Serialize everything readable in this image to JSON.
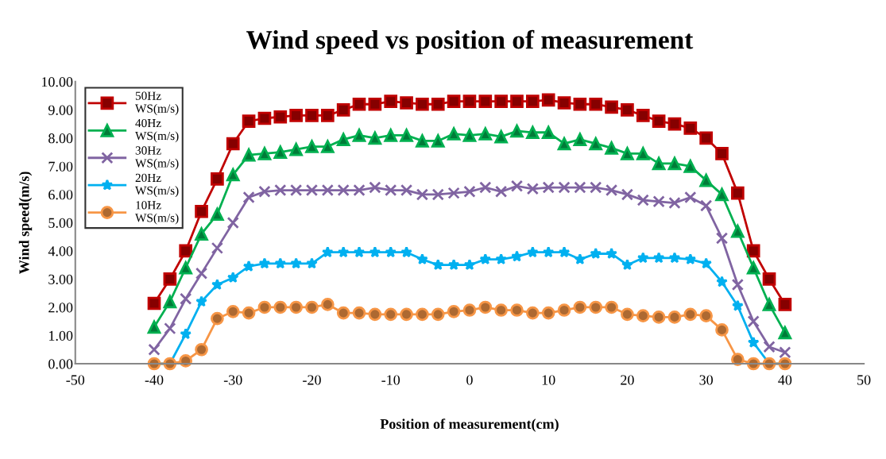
{
  "chart_data": {
    "type": "line",
    "title": "Wind speed vs position of measurement",
    "xlabel": "Position of measurement(cm)",
    "ylabel": "Wind speed(m/s)",
    "x": [
      -40,
      -38,
      -36,
      -34,
      -32,
      -30,
      -28,
      -26,
      -24,
      -22,
      -20,
      -18,
      -16,
      -14,
      -12,
      -10,
      -8,
      -6,
      -4,
      -2,
      0,
      2,
      4,
      6,
      8,
      10,
      12,
      14,
      16,
      18,
      20,
      22,
      24,
      26,
      28,
      30,
      32,
      34,
      36,
      38,
      40
    ],
    "series": [
      {
        "name": "50Hz WS(m/s)",
        "color": "#c00000",
        "marker": "square",
        "values": [
          2.14,
          3.0,
          4.0,
          5.4,
          6.55,
          7.8,
          8.6,
          8.7,
          8.75,
          8.8,
          8.8,
          8.8,
          9.0,
          9.2,
          9.2,
          9.3,
          9.25,
          9.2,
          9.2,
          9.3,
          9.3,
          9.3,
          9.3,
          9.3,
          9.3,
          9.35,
          9.25,
          9.2,
          9.2,
          9.1,
          9.0,
          8.8,
          8.6,
          8.5,
          8.35,
          8.0,
          7.45,
          6.05,
          4.0,
          3.0,
          2.1
        ]
      },
      {
        "name": "40Hz WS(m/s)",
        "color": "#00b050",
        "marker": "triangle",
        "values": [
          1.3,
          2.2,
          3.4,
          4.6,
          5.3,
          6.7,
          7.4,
          7.45,
          7.5,
          7.6,
          7.7,
          7.7,
          7.95,
          8.1,
          8.0,
          8.1,
          8.1,
          7.9,
          7.9,
          8.15,
          8.1,
          8.15,
          8.05,
          8.25,
          8.2,
          8.2,
          7.8,
          7.95,
          7.8,
          7.65,
          7.45,
          7.45,
          7.1,
          7.1,
          7.0,
          6.5,
          6.0,
          4.7,
          3.4,
          2.1,
          1.1
        ]
      },
      {
        "name": "30Hz WS(m/s)",
        "color": "#8064a2",
        "marker": "cross",
        "values": [
          0.5,
          1.25,
          2.3,
          3.2,
          4.1,
          5.0,
          5.9,
          6.1,
          6.15,
          6.15,
          6.15,
          6.15,
          6.15,
          6.15,
          6.25,
          6.15,
          6.15,
          6.0,
          6.0,
          6.05,
          6.1,
          6.25,
          6.1,
          6.3,
          6.2,
          6.25,
          6.25,
          6.25,
          6.25,
          6.15,
          6.0,
          5.8,
          5.75,
          5.7,
          5.9,
          5.6,
          4.45,
          2.8,
          1.5,
          0.6,
          0.4
        ]
      },
      {
        "name": "20Hz WS(m/s)",
        "color": "#00b0f0",
        "marker": "star",
        "values": [
          0,
          0,
          1.05,
          2.2,
          2.8,
          3.05,
          3.45,
          3.55,
          3.55,
          3.55,
          3.55,
          3.95,
          3.95,
          3.95,
          3.95,
          3.95,
          3.95,
          3.7,
          3.5,
          3.5,
          3.5,
          3.7,
          3.7,
          3.8,
          3.95,
          3.95,
          3.95,
          3.7,
          3.9,
          3.9,
          3.5,
          3.75,
          3.75,
          3.75,
          3.7,
          3.55,
          2.9,
          2.05,
          0.75,
          0,
          0
        ]
      },
      {
        "name": "10Hz WS(m/s)",
        "color": "#f79646",
        "marker": "circle",
        "values": [
          0,
          0,
          0.1,
          0.5,
          1.6,
          1.85,
          1.8,
          2.0,
          2.0,
          2.0,
          2.0,
          2.1,
          1.8,
          1.8,
          1.75,
          1.75,
          1.75,
          1.75,
          1.75,
          1.85,
          1.9,
          2.0,
          1.9,
          1.9,
          1.8,
          1.8,
          1.9,
          2.0,
          2.0,
          2.0,
          1.75,
          1.7,
          1.65,
          1.65,
          1.75,
          1.7,
          1.2,
          0.15,
          0,
          0,
          0
        ]
      }
    ],
    "xlim": [
      -50,
      50
    ],
    "xticks": [
      -50,
      -40,
      -30,
      -20,
      -10,
      0,
      10,
      20,
      30,
      40,
      50
    ],
    "ylim": [
      0,
      10
    ],
    "yticks": [
      {
        "value": 0,
        "label": "0.00"
      },
      {
        "value": 1,
        "label": "1.00"
      },
      {
        "value": 2,
        "label": "2.00"
      },
      {
        "value": 3,
        "label": "3.00"
      },
      {
        "value": 4,
        "label": "4.00"
      },
      {
        "value": 5,
        "label": "5.00"
      },
      {
        "value": 6,
        "label": "6.00"
      },
      {
        "value": 7,
        "label": "7.00"
      },
      {
        "value": 8,
        "label": "8.00"
      },
      {
        "value": 9,
        "label": "9.00"
      },
      {
        "value": 10,
        "label": "10.00"
      }
    ],
    "grid": false,
    "legend": "top left",
    "line_style": "solid"
  }
}
